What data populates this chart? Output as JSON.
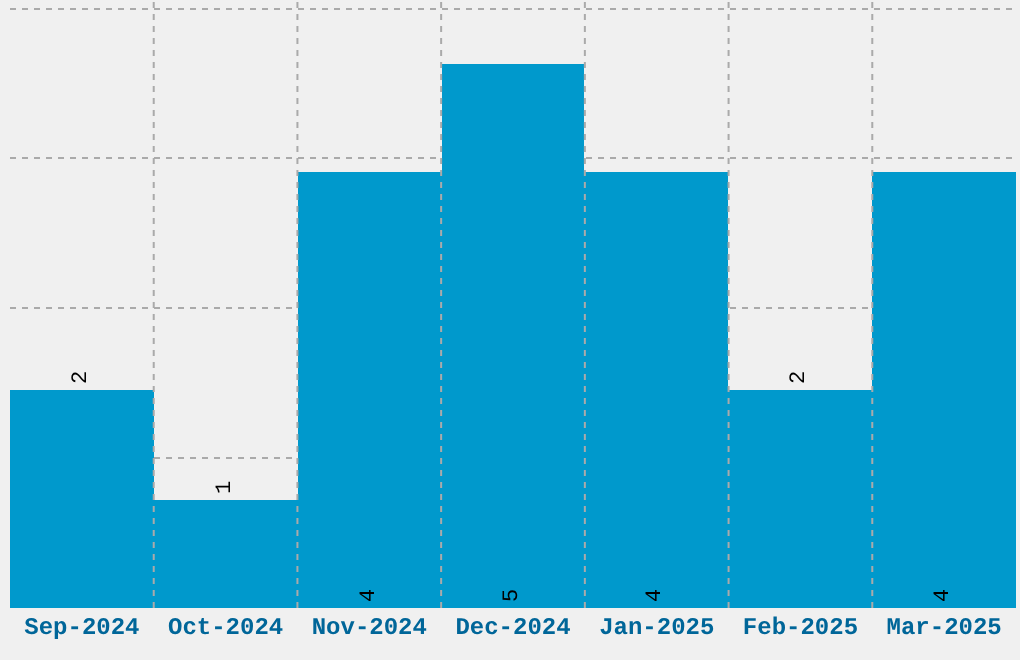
{
  "chart_data": {
    "type": "bar",
    "categories": [
      "Sep-2024",
      "Oct-2024",
      "Nov-2024",
      "Dec-2024",
      "Jan-2025",
      "Feb-2025",
      "Mar-2025"
    ],
    "values": [
      2,
      1,
      4,
      5,
      4,
      2,
      4
    ],
    "color": "#0099cc",
    "ylim": [
      0,
      5.58
    ],
    "yticks": [
      {
        "value": 1.38,
        "label": null
      },
      {
        "value": 2.75,
        "label": null
      },
      {
        "value": 4.13,
        "label": null
      },
      {
        "value": 5.5,
        "label": null
      }
    ],
    "tick_labels": "x",
    "grid": true,
    "data_labels": true
  }
}
